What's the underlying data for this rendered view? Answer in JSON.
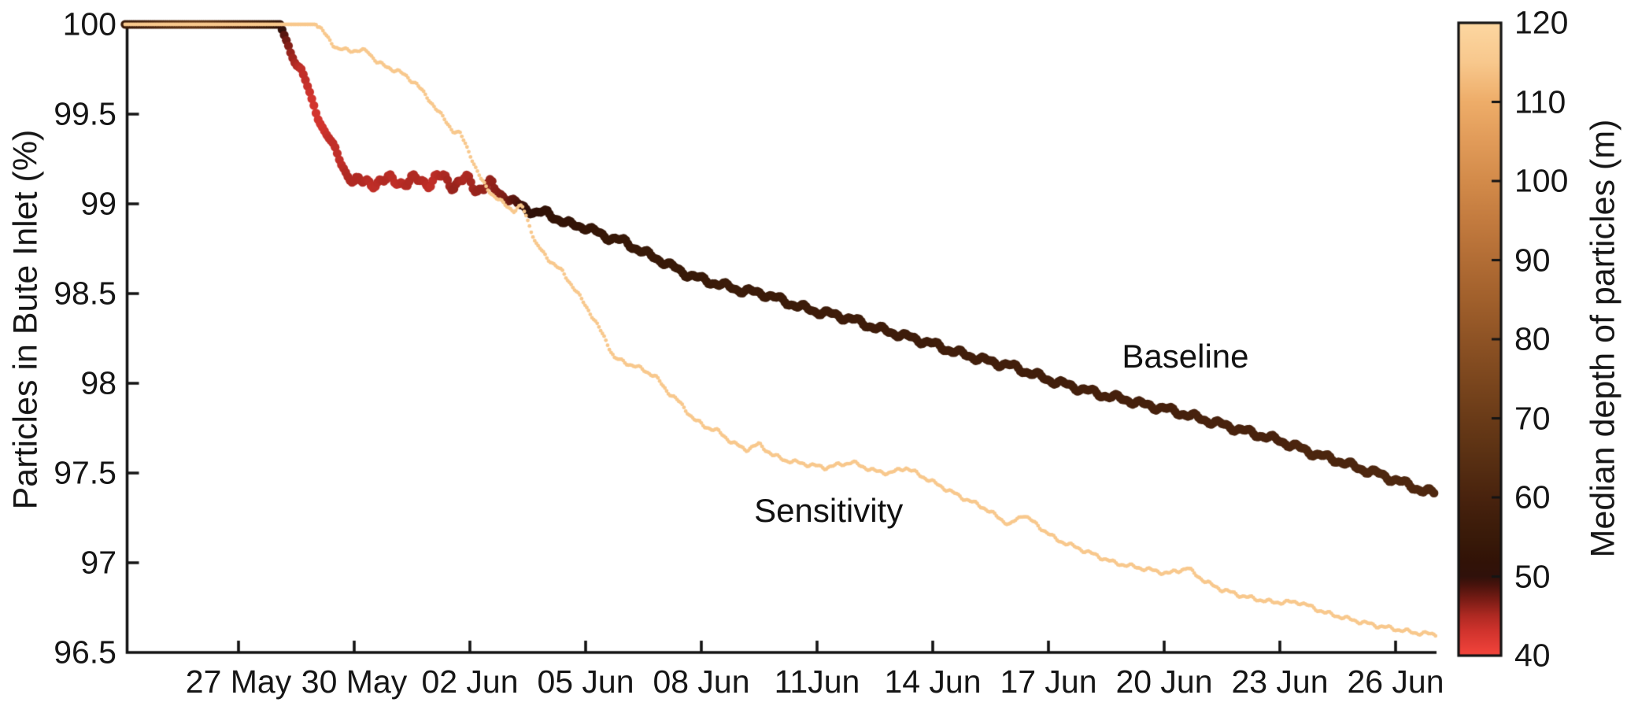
{
  "figure": {
    "background": "#ffffff",
    "axis_color": "#141414",
    "text_color": "#161616"
  },
  "chart_data": {
    "type": "scatter",
    "title": "",
    "xlabel": "",
    "ylabel": "Particles in Bute Inlet (%)",
    "x_axis": {
      "unit": "date",
      "day0_date": "24 May",
      "range_days": [
        0,
        34.2
      ],
      "tick_days": [
        3,
        6,
        9,
        12,
        15,
        18,
        21,
        24,
        27,
        30,
        33
      ],
      "tick_labels": [
        "27 May",
        "30 May",
        "02 Jun",
        "05 Jun",
        "08 Jun",
        "11Jun",
        "14 Jun",
        "17 Jun",
        "20 Jun",
        "23 Jun",
        "26 Jun"
      ]
    },
    "y_axis": {
      "label": "Particles in Bute Inlet (%)",
      "range": [
        96.5,
        100
      ],
      "ticks": [
        96.5,
        97,
        97.5,
        98,
        98.5,
        99,
        99.5,
        100
      ],
      "tick_labels": [
        "96.5",
        "97",
        "97.5",
        "98",
        "98.5",
        "99",
        "99.5",
        "100"
      ]
    },
    "colorbar": {
      "label": "Median depth of particles (m)",
      "range": [
        40,
        120
      ],
      "ticks": [
        40,
        50,
        60,
        70,
        80,
        90,
        100,
        110,
        120
      ],
      "tick_labels": [
        "40",
        "50",
        "60",
        "70",
        "80",
        "90",
        "100",
        "110",
        "120"
      ],
      "colormap": [
        [
          40,
          "#f4453c"
        ],
        [
          43,
          "#d2342e"
        ],
        [
          45,
          "#b02a23"
        ],
        [
          47,
          "#7c1d16"
        ],
        [
          49,
          "#47130c"
        ],
        [
          50,
          "#30110b"
        ],
        [
          52,
          "#321307"
        ],
        [
          55,
          "#391a09"
        ],
        [
          58,
          "#421f0c"
        ],
        [
          60,
          "#49230e"
        ],
        [
          65,
          "#593013"
        ],
        [
          70,
          "#6a3b18"
        ],
        [
          75,
          "#7c471e"
        ],
        [
          80,
          "#8e5325"
        ],
        [
          85,
          "#a1602c"
        ],
        [
          90,
          "#b26d35"
        ],
        [
          95,
          "#c37b3f"
        ],
        [
          100,
          "#d38b4a"
        ],
        [
          105,
          "#e19b59"
        ],
        [
          110,
          "#eead69"
        ],
        [
          115,
          "#f8c88d"
        ],
        [
          120,
          "#fdd7a1"
        ]
      ]
    },
    "series": [
      {
        "name": "Baseline",
        "annotation": {
          "text": "Baseline",
          "day": 27.55,
          "pct": 98.15
        },
        "marker_radius_px": 5.6,
        "sample_step_days": 0.055,
        "wiggle": {
          "flat_until_day": 4.05,
          "base_amp": 0.02,
          "descent_amp": 0.018,
          "plateau": [
            5.95,
            9.6
          ],
          "plateau_amp": 0.042
        },
        "points_format": [
          "day_since_24_May",
          "particles_pct",
          "median_depth_m"
        ],
        "points": [
          [
            0.06,
            100,
            55
          ],
          [
            0.6,
            100,
            59
          ],
          [
            1.2,
            100,
            64
          ],
          [
            1.8,
            100,
            67
          ],
          [
            2.3,
            100,
            66
          ],
          [
            2.8,
            100,
            62
          ],
          [
            3.3,
            100,
            59
          ],
          [
            3.8,
            100,
            56
          ],
          [
            4.05,
            100,
            52
          ],
          [
            4.2,
            99.93,
            48
          ],
          [
            4.35,
            99.84,
            46
          ],
          [
            4.5,
            99.79,
            45
          ],
          [
            4.62,
            99.75,
            44
          ],
          [
            4.75,
            99.68,
            44
          ],
          [
            4.9,
            99.57,
            43
          ],
          [
            5.05,
            99.49,
            43
          ],
          [
            5.2,
            99.42,
            43
          ],
          [
            5.35,
            99.37,
            44
          ],
          [
            5.5,
            99.3,
            44
          ],
          [
            5.65,
            99.23,
            44
          ],
          [
            5.8,
            99.17,
            45
          ],
          [
            5.95,
            99.13,
            45
          ],
          [
            6.2,
            99.11,
            45
          ],
          [
            6.5,
            99.13,
            44
          ],
          [
            6.8,
            99.12,
            45
          ],
          [
            7.1,
            99.14,
            44
          ],
          [
            7.4,
            99.11,
            45
          ],
          [
            7.7,
            99.14,
            45
          ],
          [
            8.0,
            99.12,
            44
          ],
          [
            8.3,
            99.15,
            45
          ],
          [
            8.6,
            99.11,
            46
          ],
          [
            8.9,
            99.13,
            45
          ],
          [
            9.2,
            99.09,
            46
          ],
          [
            9.5,
            99.1,
            46
          ],
          [
            9.9,
            99.04,
            47
          ],
          [
            10.3,
            98.99,
            49
          ],
          [
            10.7,
            98.95,
            51
          ],
          [
            11.0,
            98.95,
            52
          ],
          [
            11.5,
            98.89,
            53
          ],
          [
            12.0,
            98.87,
            53
          ],
          [
            12.5,
            98.82,
            54
          ],
          [
            13.0,
            98.79,
            54
          ],
          [
            13.5,
            98.73,
            55
          ],
          [
            14.0,
            98.68,
            55
          ],
          [
            14.5,
            98.62,
            55
          ],
          [
            15.0,
            98.58,
            55
          ],
          [
            15.5,
            98.55,
            56
          ],
          [
            16.0,
            98.52,
            56
          ],
          [
            16.6,
            98.5,
            56
          ],
          [
            17.0,
            98.47,
            56
          ],
          [
            17.5,
            98.43,
            56
          ],
          [
            18.0,
            98.4,
            57
          ],
          [
            18.5,
            98.38,
            57
          ],
          [
            19.0,
            98.35,
            57
          ],
          [
            19.5,
            98.31,
            57
          ],
          [
            20.0,
            98.28,
            57
          ],
          [
            20.5,
            98.25,
            57
          ],
          [
            21.0,
            98.22,
            57
          ],
          [
            21.5,
            98.18,
            58
          ],
          [
            22.0,
            98.15,
            58
          ],
          [
            22.5,
            98.12,
            58
          ],
          [
            23.0,
            98.1,
            58
          ],
          [
            23.5,
            98.06,
            58
          ],
          [
            24.0,
            98.02,
            58
          ],
          [
            24.5,
            97.99,
            58
          ],
          [
            25.0,
            97.96,
            59
          ],
          [
            25.5,
            97.93,
            59
          ],
          [
            26.0,
            97.91,
            59
          ],
          [
            26.5,
            97.88,
            59
          ],
          [
            27.0,
            97.86,
            59
          ],
          [
            27.5,
            97.83,
            59
          ],
          [
            28.0,
            97.8,
            60
          ],
          [
            28.5,
            97.77,
            60
          ],
          [
            29.0,
            97.74,
            60
          ],
          [
            29.5,
            97.71,
            60
          ],
          [
            30.0,
            97.68,
            60
          ],
          [
            30.5,
            97.64,
            61
          ],
          [
            31.0,
            97.6,
            61
          ],
          [
            31.5,
            97.57,
            61
          ],
          [
            32.0,
            97.53,
            61
          ],
          [
            32.5,
            97.5,
            62
          ],
          [
            33.0,
            97.46,
            62
          ],
          [
            33.4,
            97.43,
            62
          ],
          [
            33.7,
            97.4,
            62
          ],
          [
            34.0,
            97.39,
            62
          ]
        ]
      },
      {
        "name": "Sensitivity",
        "annotation": {
          "text": "Sensitivity",
          "day": 18.3,
          "pct": 97.29
        },
        "marker_radius_px": 2.4,
        "sample_step_days": 0.045,
        "median_depth_m": 115,
        "wiggle": {
          "flat_until_day": 5.02,
          "base_amp": 0.012
        },
        "points_format": [
          "day_since_24_May",
          "particles_pct"
        ],
        "points": [
          [
            0.06,
            100
          ],
          [
            5.0,
            100
          ],
          [
            5.15,
            99.97
          ],
          [
            5.3,
            99.93
          ],
          [
            5.45,
            99.89
          ],
          [
            5.6,
            99.86
          ],
          [
            6.35,
            99.85
          ],
          [
            6.6,
            99.79
          ],
          [
            6.85,
            99.76
          ],
          [
            7.15,
            99.74
          ],
          [
            7.4,
            99.7
          ],
          [
            7.62,
            99.67
          ],
          [
            7.82,
            99.61
          ],
          [
            8.02,
            99.56
          ],
          [
            8.2,
            99.51
          ],
          [
            8.37,
            99.46
          ],
          [
            8.55,
            99.41
          ],
          [
            8.75,
            99.39
          ],
          [
            9.0,
            99.28
          ],
          [
            9.15,
            99.2
          ],
          [
            9.3,
            99.13
          ],
          [
            9.55,
            99.06
          ],
          [
            9.75,
            99.02
          ],
          [
            9.95,
            98.99
          ],
          [
            10.15,
            98.96
          ],
          [
            10.35,
            98.99
          ],
          [
            10.55,
            98.88
          ],
          [
            10.7,
            98.78
          ],
          [
            11.0,
            98.7
          ],
          [
            11.4,
            98.62
          ],
          [
            11.7,
            98.53
          ],
          [
            12.1,
            98.4
          ],
          [
            12.5,
            98.25
          ],
          [
            12.75,
            98.14
          ],
          [
            13.1,
            98.11
          ],
          [
            13.45,
            98.08
          ],
          [
            13.8,
            98.04
          ],
          [
            14.1,
            97.96
          ],
          [
            14.45,
            97.89
          ],
          [
            14.8,
            97.8
          ],
          [
            15.1,
            97.76
          ],
          [
            15.45,
            97.73
          ],
          [
            15.8,
            97.67
          ],
          [
            16.15,
            97.63
          ],
          [
            16.5,
            97.66
          ],
          [
            16.85,
            97.6
          ],
          [
            17.2,
            97.57
          ],
          [
            17.7,
            97.55
          ],
          [
            18.2,
            97.53
          ],
          [
            18.9,
            97.56
          ],
          [
            19.5,
            97.51
          ],
          [
            19.9,
            97.5
          ],
          [
            20.3,
            97.53
          ],
          [
            21.0,
            97.45
          ],
          [
            21.7,
            97.37
          ],
          [
            22.3,
            97.31
          ],
          [
            23.0,
            97.21
          ],
          [
            23.35,
            97.27
          ],
          [
            23.7,
            97.21
          ],
          [
            24.2,
            97.13
          ],
          [
            24.9,
            97.07
          ],
          [
            25.7,
            97.0
          ],
          [
            26.4,
            96.97
          ],
          [
            27.1,
            96.94
          ],
          [
            27.6,
            96.97
          ],
          [
            28.1,
            96.89
          ],
          [
            28.5,
            96.85
          ],
          [
            29.1,
            96.81
          ],
          [
            29.8,
            96.78
          ],
          [
            30.5,
            96.78
          ],
          [
            31.2,
            96.72
          ],
          [
            31.9,
            96.68
          ],
          [
            32.5,
            96.65
          ],
          [
            33.0,
            96.63
          ],
          [
            33.5,
            96.61
          ],
          [
            34.05,
            96.6
          ]
        ]
      }
    ]
  }
}
